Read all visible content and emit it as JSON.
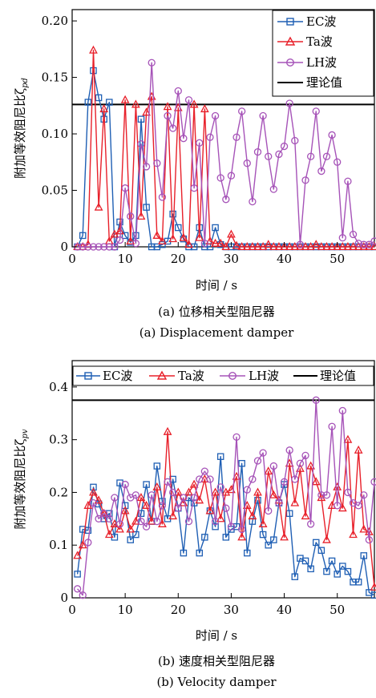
{
  "colors": {
    "ec": "#1f5fb4",
    "ta": "#e8202a",
    "lh": "#a653b8",
    "theory": "#000000"
  },
  "figure_a": {
    "ylabel": "附加等效阻尼比ζ",
    "ylabel_sub": "pd",
    "xlabel": "时间 / s",
    "caption_zh": "(a) 位移相关型阻尼器",
    "caption_en": "(a) Displacement damper",
    "legend": [
      "EC波",
      "Ta波",
      "LH波",
      "理论值"
    ]
  },
  "figure_b": {
    "ylabel": "附加等效阻尼比ζ",
    "ylabel_sub": "pv",
    "xlabel": "时间 / s",
    "caption_zh": "(b) 速度相关型阻尼器",
    "caption_en": "(b) Velocity damper",
    "legend": [
      "EC波",
      "Ta波",
      "LH波",
      "理论值"
    ]
  },
  "chart_data": [
    {
      "type": "line",
      "xlabel": "时间 / s",
      "ylabel": "附加等效阻尼比ζpd",
      "xlim": [
        0,
        57
      ],
      "ylim": [
        0,
        0.21
      ],
      "xticks": [
        0,
        10,
        20,
        30,
        40,
        50
      ],
      "yticks": [
        0,
        0.05,
        0.1,
        0.15,
        0.2
      ],
      "ytick_labels": [
        "0",
        "0.05",
        "0.10",
        "0.15",
        "0.20"
      ],
      "legend_position": "top-right",
      "theory": 0.126,
      "series": [
        {
          "name": "EC波",
          "marker": "square",
          "x": [
            1,
            2,
            3,
            4,
            5,
            6,
            7,
            8,
            9,
            10,
            11,
            12,
            13,
            14,
            15,
            16,
            17,
            18,
            19,
            20,
            21,
            22,
            23,
            24,
            25,
            26,
            27,
            28,
            29,
            30,
            31,
            32,
            33,
            34,
            35,
            36,
            37,
            38,
            39,
            40,
            41,
            42,
            43,
            44,
            45,
            46,
            47,
            48,
            49,
            50,
            51,
            52,
            53,
            54,
            55,
            56,
            57
          ],
          "y": [
            0,
            0.01,
            0.128,
            0.156,
            0.132,
            0.113,
            0.128,
            0,
            0.022,
            0.01,
            0.004,
            0.01,
            0.113,
            0.035,
            0,
            0,
            0.002,
            0.005,
            0.029,
            0.017,
            0.007,
            0,
            0,
            0.017,
            0,
            0,
            0.017,
            0.002,
            0,
            0,
            0,
            0,
            0,
            0,
            0,
            0,
            0,
            0,
            0,
            0,
            0,
            0,
            0,
            0,
            0,
            0,
            0,
            0,
            0,
            0,
            0,
            0,
            0,
            0,
            0,
            0,
            0
          ]
        },
        {
          "name": "Ta波",
          "marker": "triangle",
          "x": [
            1,
            2,
            3,
            4,
            5,
            6,
            7,
            8,
            9,
            10,
            11,
            12,
            13,
            14,
            15,
            16,
            17,
            18,
            19,
            20,
            21,
            22,
            23,
            24,
            25,
            26,
            27,
            28,
            29,
            30,
            31,
            32,
            33,
            34,
            35,
            36,
            37,
            38,
            39,
            40,
            41,
            42,
            43,
            44,
            45,
            46,
            47,
            48,
            49,
            50,
            51,
            52,
            53,
            54,
            55,
            56,
            57
          ],
          "y": [
            0,
            0,
            0.002,
            0.174,
            0.035,
            0.122,
            0.005,
            0.011,
            0.014,
            0.13,
            0.005,
            0.126,
            0.027,
            0.119,
            0.133,
            0.01,
            0.005,
            0.124,
            0.007,
            0.123,
            0.008,
            0.002,
            0.126,
            0.008,
            0.122,
            0.005,
            0.003,
            0.003,
            0,
            0.011,
            0.001,
            0,
            0,
            0,
            0,
            0,
            0.002,
            0,
            0,
            0,
            0,
            0,
            0,
            0,
            0,
            0.002,
            0,
            0,
            0,
            0,
            0,
            0,
            0,
            0,
            0,
            0,
            0
          ]
        },
        {
          "name": "LH波",
          "marker": "circle",
          "x": [
            1,
            2,
            3,
            4,
            5,
            6,
            7,
            8,
            9,
            10,
            11,
            12,
            13,
            14,
            15,
            16,
            17,
            18,
            19,
            20,
            21,
            22,
            23,
            24,
            25,
            26,
            27,
            28,
            29,
            30,
            31,
            32,
            33,
            34,
            35,
            36,
            37,
            38,
            39,
            40,
            41,
            42,
            43,
            44,
            45,
            46,
            47,
            48,
            49,
            50,
            51,
            52,
            53,
            54,
            55,
            56,
            57
          ],
          "y": [
            0,
            0,
            0,
            0,
            0,
            0,
            0,
            0,
            0.006,
            0.052,
            0.027,
            0.003,
            0.091,
            0.071,
            0.163,
            0.074,
            0.044,
            0.116,
            0.105,
            0.138,
            0.096,
            0.13,
            0.052,
            0.092,
            0.003,
            0.097,
            0.116,
            0.061,
            0.042,
            0.063,
            0.097,
            0.12,
            0.074,
            0.04,
            0.084,
            0.116,
            0.08,
            0.051,
            0.082,
            0.089,
            0.127,
            0.094,
            0.002,
            0.059,
            0.08,
            0.12,
            0.067,
            0.08,
            0.099,
            0.075,
            0.008,
            0.058,
            0.011,
            0.003,
            0.002,
            0.002,
            0.005
          ]
        }
      ]
    },
    {
      "type": "line",
      "xlabel": "时间 / s",
      "ylabel": "附加等效阻尼比ζpv",
      "xlim": [
        0,
        57
      ],
      "ylim": [
        0,
        0.45
      ],
      "xticks": [
        0,
        10,
        20,
        30,
        40,
        50
      ],
      "yticks": [
        0,
        0.1,
        0.2,
        0.3,
        0.4
      ],
      "ytick_labels": [
        "0",
        "0.1",
        "0.2",
        "0.3",
        "0.4"
      ],
      "legend_position": "top",
      "theory": 0.375,
      "series": [
        {
          "name": "EC波",
          "marker": "square",
          "x": [
            1,
            2,
            3,
            4,
            5,
            6,
            7,
            8,
            9,
            10,
            11,
            12,
            13,
            14,
            15,
            16,
            17,
            18,
            19,
            20,
            21,
            22,
            23,
            24,
            25,
            26,
            27,
            28,
            29,
            30,
            31,
            32,
            33,
            34,
            35,
            36,
            37,
            38,
            39,
            40,
            41,
            42,
            43,
            44,
            45,
            46,
            47,
            48,
            49,
            50,
            51,
            52,
            53,
            54,
            55,
            56,
            57
          ],
          "y": [
            0.045,
            0.13,
            0.128,
            0.21,
            0.178,
            0.15,
            0.16,
            0.115,
            0.218,
            0.175,
            0.11,
            0.12,
            0.16,
            0.215,
            0.145,
            0.25,
            0.183,
            0.15,
            0.225,
            0.17,
            0.085,
            0.19,
            0.18,
            0.085,
            0.115,
            0.165,
            0.135,
            0.268,
            0.115,
            0.13,
            0.135,
            0.255,
            0.085,
            0.145,
            0.185,
            0.12,
            0.1,
            0.11,
            0.18,
            0.215,
            0.16,
            0.04,
            0.075,
            0.07,
            0.055,
            0.105,
            0.09,
            0.05,
            0.07,
            0.045,
            0.06,
            0.05,
            0.03,
            0.03,
            0.08,
            0.01,
            0.005
          ]
        },
        {
          "name": "Ta波",
          "marker": "triangle",
          "x": [
            1,
            2,
            3,
            4,
            5,
            6,
            7,
            8,
            9,
            10,
            11,
            12,
            13,
            14,
            15,
            16,
            17,
            18,
            19,
            20,
            21,
            22,
            23,
            24,
            25,
            26,
            27,
            28,
            29,
            30,
            31,
            32,
            33,
            34,
            35,
            36,
            37,
            38,
            39,
            40,
            41,
            42,
            43,
            44,
            45,
            46,
            47,
            48,
            49,
            50,
            51,
            52,
            53,
            54,
            55,
            56,
            57
          ],
          "y": [
            0.08,
            0.1,
            0.175,
            0.2,
            0.185,
            0.16,
            0.12,
            0.14,
            0.13,
            0.165,
            0.13,
            0.145,
            0.19,
            0.175,
            0.145,
            0.21,
            0.14,
            0.315,
            0.155,
            0.2,
            0.18,
            0.2,
            0.215,
            0.185,
            0.225,
            0.165,
            0.2,
            0.15,
            0.2,
            0.205,
            0.23,
            0.115,
            0.175,
            0.155,
            0.2,
            0.14,
            0.24,
            0.195,
            0.185,
            0.115,
            0.255,
            0.18,
            0.245,
            0.155,
            0.25,
            0.22,
            0.19,
            0.11,
            0.175,
            0.21,
            0.17,
            0.3,
            0.12,
            0.28,
            0.13,
            0.125,
            0.02
          ]
        },
        {
          "name": "LH波",
          "marker": "circle",
          "x": [
            1,
            2,
            3,
            4,
            5,
            6,
            7,
            8,
            9,
            10,
            11,
            12,
            13,
            14,
            15,
            16,
            17,
            18,
            19,
            20,
            21,
            22,
            23,
            24,
            25,
            26,
            27,
            28,
            29,
            30,
            31,
            32,
            33,
            34,
            35,
            36,
            37,
            38,
            39,
            40,
            41,
            42,
            43,
            44,
            45,
            46,
            47,
            48,
            49,
            50,
            51,
            52,
            53,
            54,
            55,
            56,
            57
          ],
          "y": [
            0.017,
            0.005,
            0.105,
            0.18,
            0.15,
            0.16,
            0.15,
            0.19,
            0.14,
            0.215,
            0.19,
            0.195,
            0.145,
            0.135,
            0.195,
            0.145,
            0.175,
            0.22,
            0.2,
            0.17,
            0.19,
            0.145,
            0.19,
            0.225,
            0.24,
            0.225,
            0.145,
            0.21,
            0.17,
            0.135,
            0.305,
            0.13,
            0.205,
            0.225,
            0.26,
            0.275,
            0.165,
            0.25,
            0.18,
            0.22,
            0.28,
            0.225,
            0.255,
            0.27,
            0.14,
            0.375,
            0.195,
            0.195,
            0.325,
            0.175,
            0.355,
            0.2,
            0.18,
            0.175,
            0.195,
            0.11,
            0.22
          ]
        }
      ]
    }
  ]
}
